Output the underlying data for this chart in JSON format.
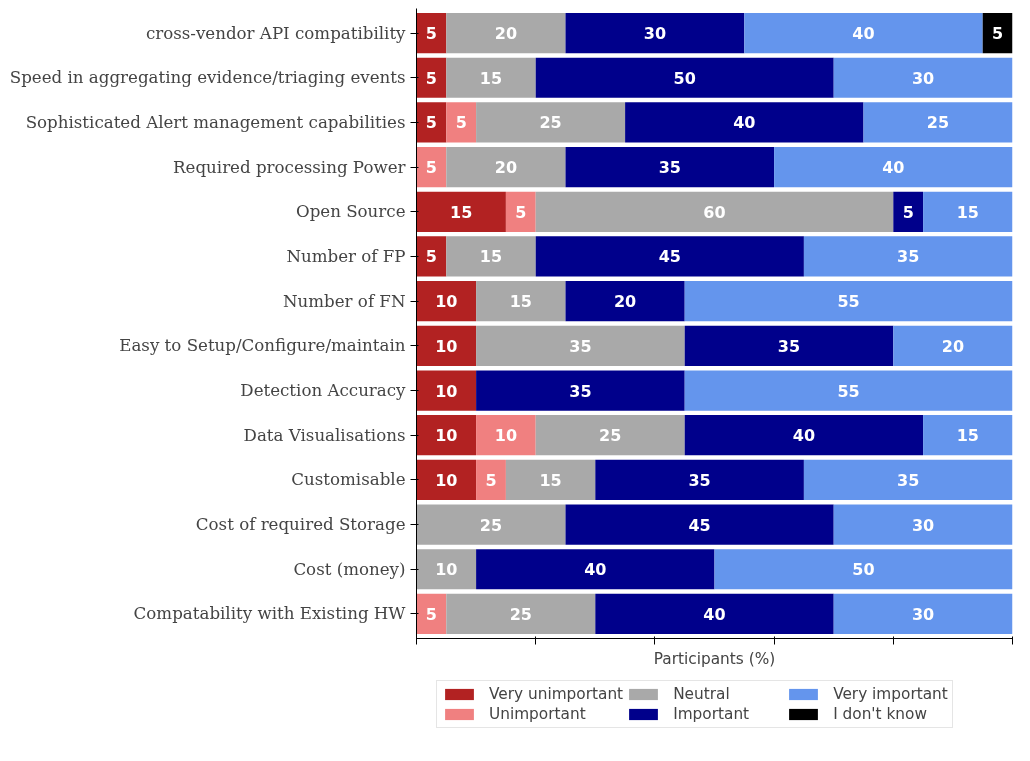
{
  "chart_data": {
    "type": "bar",
    "orientation": "horizontal",
    "stacked": true,
    "xlabel": "Participants (%)",
    "categories": [
      "cross-vendor API compatibility",
      "Speed in aggregating evidence/triaging events",
      "Sophisticated Alert management capabilities",
      "Required processing Power",
      "Open Source",
      "Number of FP",
      "Number of FN",
      "Easy to Setup/Configure/maintain",
      "Detection Accuracy",
      "Data Visualisations",
      "Customisable",
      "Cost of required Storage",
      "Cost (money)",
      "Compatability with Existing HW"
    ],
    "series": [
      {
        "name": "Very unimportant",
        "color": "#b22222",
        "values": [
          5,
          5,
          5,
          null,
          15,
          5,
          10,
          10,
          10,
          10,
          10,
          null,
          null,
          null
        ]
      },
      {
        "name": "Unimportant",
        "color": "#f08080",
        "values": [
          null,
          null,
          5,
          5,
          5,
          null,
          null,
          null,
          null,
          10,
          5,
          null,
          null,
          5
        ]
      },
      {
        "name": "Neutral",
        "color": "#a9a9a9",
        "values": [
          20,
          15,
          25,
          20,
          60,
          15,
          15,
          35,
          null,
          25,
          15,
          25,
          10,
          25
        ]
      },
      {
        "name": "Important",
        "color": "#00008b",
        "values": [
          30,
          50,
          40,
          35,
          5,
          45,
          20,
          35,
          35,
          40,
          35,
          45,
          40,
          40
        ]
      },
      {
        "name": "Very important",
        "color": "#6495ed",
        "values": [
          40,
          30,
          25,
          40,
          15,
          35,
          55,
          20,
          55,
          15,
          35,
          30,
          50,
          30
        ]
      },
      {
        "name": "I don't know",
        "color": "#000000",
        "values": [
          5,
          null,
          null,
          null,
          null,
          null,
          null,
          null,
          null,
          null,
          null,
          null,
          null,
          null
        ]
      }
    ],
    "xlim": [
      0,
      100
    ],
    "xticks": [
      {
        "value": 0,
        "label": null
      },
      {
        "value": 20,
        "label": null
      },
      {
        "value": 40,
        "label": null
      },
      {
        "value": 60,
        "label": null
      },
      {
        "value": 80,
        "label": null
      },
      {
        "value": 100,
        "label": null
      }
    ],
    "data_labels": true,
    "legend": "bottom",
    "grid": false
  }
}
